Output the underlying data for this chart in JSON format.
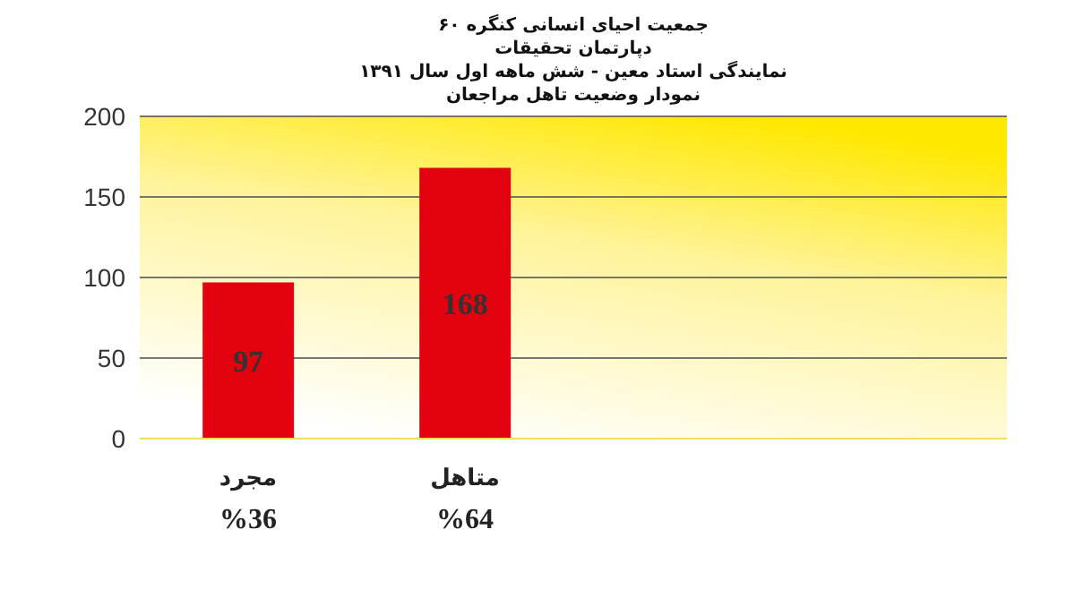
{
  "chart_data": {
    "type": "bar",
    "title": "جمعیت احیای انسانی کنگره ۶۰",
    "subtitle": "دپارتمان تحقیقات\nنمایندگی استاد معین - شش ماهه اول سال ۱۳۹۱\nنمودار وضعیت تاهل مراجعان",
    "categories": [
      "مجرد",
      "متاهل",
      null,
      null
    ],
    "values": [
      97,
      168,
      null,
      null
    ],
    "color": "#e3000f",
    "ylim": [
      0,
      200
    ],
    "yticks": [
      0,
      50,
      100,
      150,
      200
    ],
    "grid": "y",
    "data_labels": true,
    "annotations": [
      "%36",
      "%64"
    ]
  }
}
